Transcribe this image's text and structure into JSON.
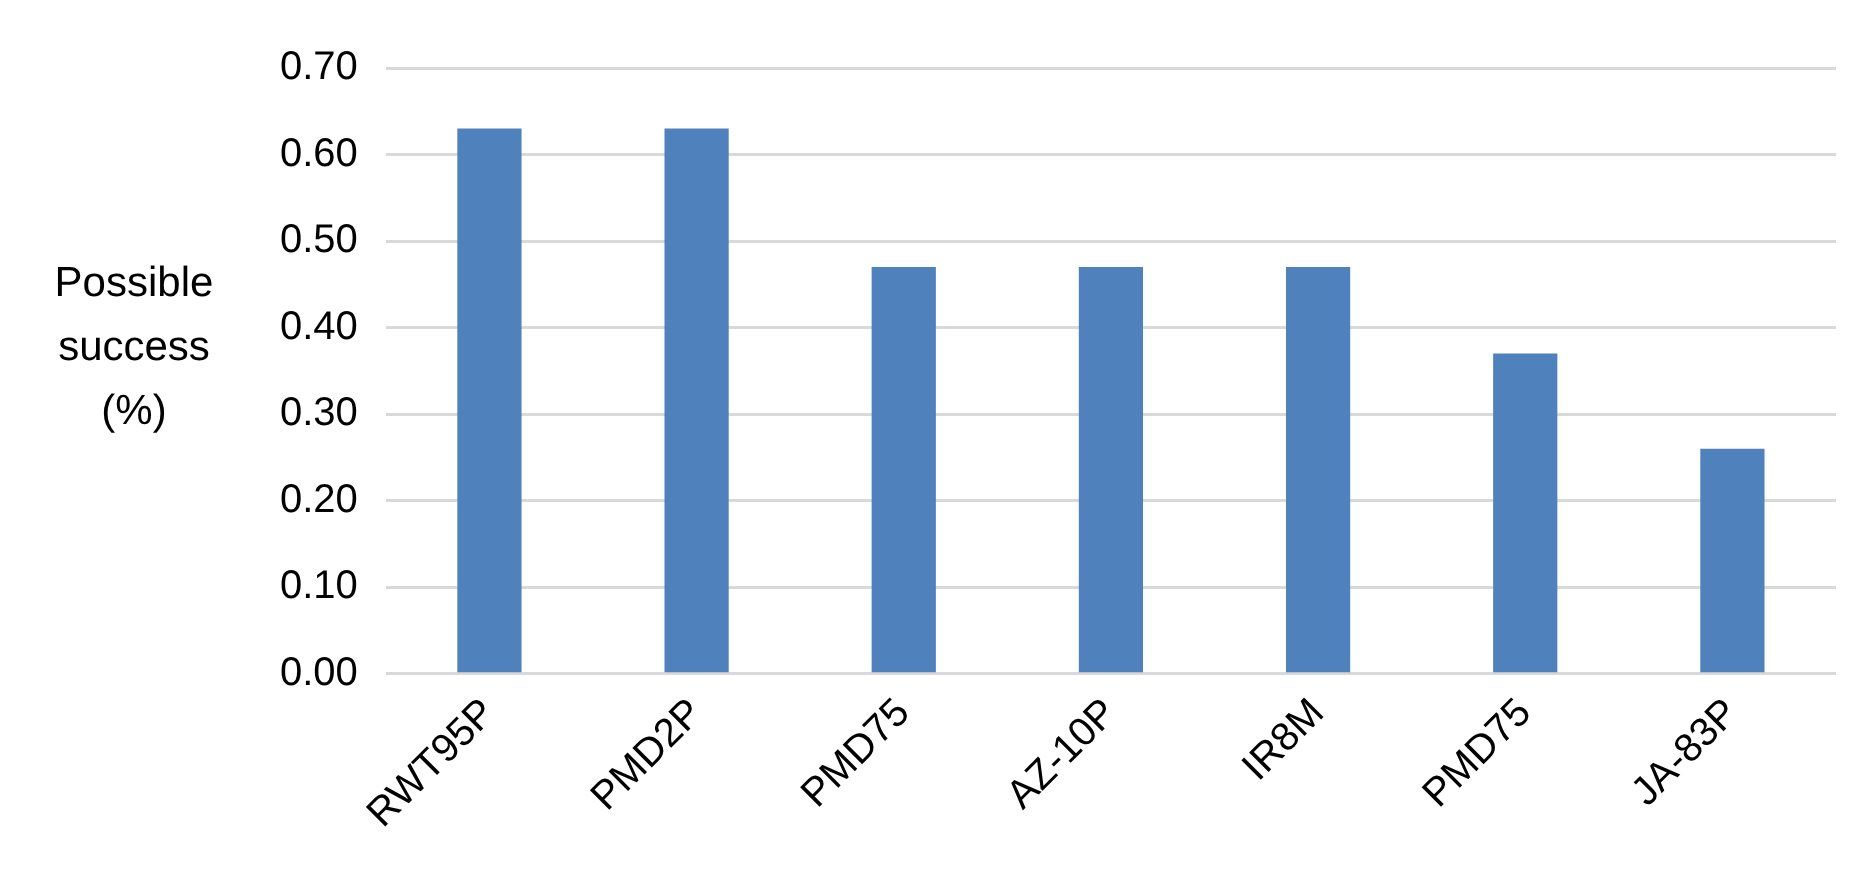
{
  "chart_data": {
    "type": "bar",
    "ylabel": "Possible success (%)",
    "categories": [
      "RWT95P",
      "PMD2P",
      "PMD75",
      "AZ-10P",
      "IR8M",
      "PMD75",
      "JA-83P"
    ],
    "values": [
      0.63,
      0.63,
      0.47,
      0.47,
      0.47,
      0.37,
      0.26
    ],
    "color": "#4f81bd",
    "ylim": [
      0,
      0.7
    ],
    "yticks": [
      {
        "value": 0,
        "label": "0.00"
      },
      {
        "value": 0.1,
        "label": "0.10"
      },
      {
        "value": 0.2,
        "label": "0.20"
      },
      {
        "value": 0.3,
        "label": "0.30"
      },
      {
        "value": 0.4,
        "label": "0.40"
      },
      {
        "value": 0.5,
        "label": "0.50"
      },
      {
        "value": 0.6,
        "label": "0.60"
      },
      {
        "value": 0.7,
        "label": "0.70"
      }
    ],
    "grid": "y",
    "legend": false
  }
}
